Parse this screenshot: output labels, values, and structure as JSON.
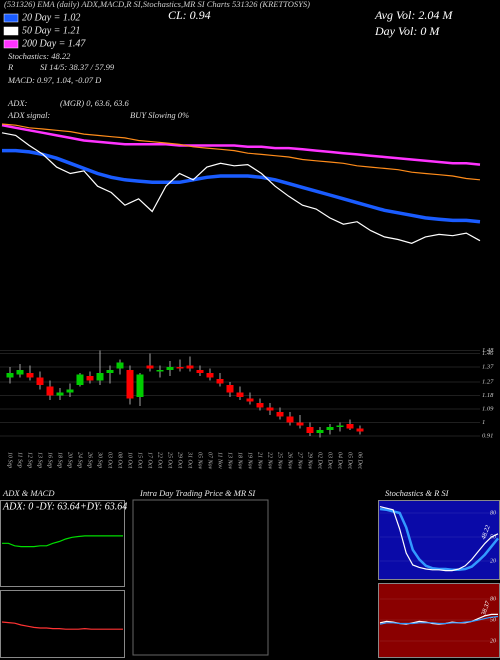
{
  "chart_data": [
    {
      "type": "line",
      "annotations": [
        "(531326) EMA (daily) ADX,MACD,R  SI,Stochastics,MR  SI Charts 531326 (KRETTOSYS)",
        "CL: 0.94",
        "Avg Vol: 2.04  M",
        "Day Vol: 0  M",
        "Stochastics: 48.22",
        "R",
        "SI 14/5: 38.37 / 57.99",
        "MACD: 0.97, 1.04, -0.07 D",
        "ADX:",
        "(MGR) 0, 63.6, 63.6",
        "ADX  signal:",
        "BUY Slowing 0%"
      ],
      "ylim": [
        0.6,
        1.9
      ],
      "series": [
        {
          "name": "20 Day = 1.02",
          "color": "#1a5cff",
          "values": [
            1.58,
            1.58,
            1.57,
            1.55,
            1.52,
            1.48,
            1.44,
            1.4,
            1.37,
            1.35,
            1.34,
            1.33,
            1.33,
            1.33,
            1.35,
            1.37,
            1.38,
            1.38,
            1.38,
            1.37,
            1.35,
            1.32,
            1.29,
            1.26,
            1.23,
            1.2,
            1.17,
            1.14,
            1.11,
            1.09,
            1.07,
            1.05,
            1.04,
            1.03,
            1.03,
            1.02
          ]
        },
        {
          "name": "50 Day = 1.21",
          "color": "#ffffff",
          "values": [
            1.72,
            1.7,
            1.62,
            1.55,
            1.45,
            1.4,
            1.42,
            1.3,
            1.25,
            1.15,
            1.2,
            1.1,
            1.3,
            1.4,
            1.35,
            1.45,
            1.48,
            1.46,
            1.47,
            1.4,
            1.3,
            1.22,
            1.15,
            1.12,
            1.05,
            1.0,
            1.02,
            0.95,
            0.9,
            0.88,
            0.85,
            0.9,
            0.92,
            0.91,
            0.93,
            0.87
          ]
        },
        {
          "name": "200 Day = 1.47",
          "color": "#ff33ff",
          "values": [
            1.78,
            1.76,
            1.74,
            1.72,
            1.7,
            1.68,
            1.66,
            1.65,
            1.64,
            1.63,
            1.63,
            1.63,
            1.63,
            1.62,
            1.62,
            1.62,
            1.62,
            1.62,
            1.61,
            1.61,
            1.6,
            1.6,
            1.59,
            1.58,
            1.57,
            1.56,
            1.55,
            1.54,
            1.53,
            1.52,
            1.51,
            1.5,
            1.49,
            1.48,
            1.48,
            1.47
          ]
        },
        {
          "color": "#ff8c1a",
          "values": [
            1.79,
            1.78,
            1.76,
            1.75,
            1.74,
            1.73,
            1.71,
            1.7,
            1.69,
            1.68,
            1.66,
            1.65,
            1.64,
            1.63,
            1.61,
            1.6,
            1.59,
            1.58,
            1.56,
            1.55,
            1.54,
            1.53,
            1.51,
            1.5,
            1.49,
            1.48,
            1.46,
            1.45,
            1.44,
            1.43,
            1.41,
            1.4,
            1.39,
            1.38,
            1.36,
            1.35
          ]
        }
      ]
    },
    {
      "type": "candlestick",
      "categories": [
        "10 Sep",
        "11 Sep",
        "12 Sep",
        "13 Sep",
        "16 Sep",
        "18 Sep",
        "20 Sep",
        "24 Sep",
        "26 Sep",
        "30 Sep",
        "03 Oct",
        "08 Oct",
        "10 Oct",
        "15 Oct",
        "17 Oct",
        "22 Oct",
        "25 Oct",
        "29 Oct",
        "31 Oct",
        "05 Nov",
        "07 Nov",
        "11 Nov",
        "13 Nov",
        "18 Nov",
        "19 Nov",
        "21 Nov",
        "22 Nov",
        "25 Nov",
        "26 Nov",
        "27 Nov",
        "29 Nov",
        "02 Dec",
        "03 Dec",
        "04 Dec",
        "05 Dec",
        "06 Dec"
      ],
      "open": [
        1.3,
        1.32,
        1.33,
        1.3,
        1.24,
        1.18,
        1.2,
        1.25,
        1.31,
        1.28,
        1.33,
        1.36,
        1.35,
        1.17,
        1.38,
        1.34,
        1.35,
        1.37,
        1.38,
        1.35,
        1.33,
        1.29,
        1.25,
        1.2,
        1.16,
        1.13,
        1.1,
        1.07,
        1.04,
        1.0,
        0.97,
        0.93,
        0.95,
        0.97,
        0.99,
        0.96
      ],
      "high": [
        1.37,
        1.39,
        1.38,
        1.34,
        1.28,
        1.23,
        1.26,
        1.33,
        1.34,
        1.48,
        1.38,
        1.42,
        1.38,
        1.33,
        1.46,
        1.38,
        1.41,
        1.42,
        1.44,
        1.38,
        1.36,
        1.33,
        1.27,
        1.24,
        1.2,
        1.16,
        1.13,
        1.1,
        1.07,
        1.05,
        1.0,
        0.97,
        0.99,
        1.0,
        1.02,
        0.98
      ],
      "low": [
        1.26,
        1.3,
        1.28,
        1.22,
        1.15,
        1.15,
        1.17,
        1.24,
        1.26,
        1.25,
        1.26,
        1.32,
        1.12,
        1.11,
        1.34,
        1.3,
        1.31,
        1.34,
        1.34,
        1.31,
        1.28,
        1.24,
        1.17,
        1.15,
        1.12,
        1.08,
        1.05,
        1.02,
        0.98,
        0.96,
        0.91,
        0.9,
        0.92,
        0.94,
        0.95,
        0.92
      ],
      "close": [
        1.33,
        1.35,
        1.3,
        1.25,
        1.18,
        1.2,
        1.22,
        1.32,
        1.28,
        1.33,
        1.35,
        1.4,
        1.16,
        1.32,
        1.36,
        1.35,
        1.37,
        1.36,
        1.36,
        1.33,
        1.3,
        1.26,
        1.2,
        1.17,
        1.14,
        1.1,
        1.08,
        1.04,
        1.0,
        0.98,
        0.93,
        0.95,
        0.97,
        0.98,
        0.96,
        0.94
      ],
      "up_color": "#00cc00",
      "down_color": "#ff0000",
      "ylim": [
        0.85,
        1.55
      ],
      "yticks": [
        0.91,
        1,
        1.09,
        1.18,
        1.27,
        1.37,
        1.46,
        1.48
      ],
      "grid": true
    },
    {
      "type": "line",
      "title": "ADX  & MACD",
      "annotations": [
        "ADX: 0",
        "-DY: 63.64",
        "+DY: 63.64"
      ],
      "ylim": [
        0,
        100
      ],
      "series": [
        {
          "color": "#00dd00",
          "values": [
            55,
            55,
            52,
            51,
            51,
            51,
            52,
            52,
            55,
            57,
            60,
            62,
            63,
            63.64,
            63.64,
            63.64,
            63.64,
            63.64,
            63.64,
            63.64
          ]
        }
      ]
    },
    {
      "type": "line",
      "ylim": [
        -0.5,
        0.5
      ],
      "series": [
        {
          "color": "#ff3333",
          "values": [
            0.05,
            0.04,
            0.03,
            0.0,
            -0.02,
            -0.04,
            -0.05,
            -0.05,
            -0.06,
            -0.06,
            -0.07,
            -0.07,
            -0.07,
            -0.06,
            -0.07,
            -0.07,
            -0.07,
            -0.07,
            -0.07,
            -0.07
          ]
        }
      ]
    },
    {
      "type": "box",
      "title": "Intra Day Trading Price  & MR       SI"
    },
    {
      "type": "line",
      "title": "Stochastics & R       SI",
      "background": "#0a0aa8",
      "annotations": [
        "48.22"
      ],
      "ylim": [
        0,
        100
      ],
      "yticks": [
        20,
        50,
        80
      ],
      "series": [
        {
          "color": "#3399ff",
          "values": [
            85,
            84,
            82,
            80,
            62,
            34,
            22,
            14,
            11,
            10,
            10,
            9,
            9,
            10,
            13,
            20,
            28,
            38,
            48.22
          ]
        },
        {
          "color": "#ffffff",
          "values": [
            88,
            86,
            84,
            60,
            30,
            15,
            12,
            10,
            9,
            9,
            8,
            8,
            10,
            14,
            22,
            32,
            42,
            50,
            54
          ]
        }
      ]
    },
    {
      "type": "line",
      "background": "#8a0000",
      "annotations": [
        "38.37"
      ],
      "ylim": [
        0,
        100
      ],
      "yticks": [
        20,
        50,
        80
      ],
      "series": [
        {
          "color": "#ffffff",
          "values": [
            46,
            48,
            47,
            45,
            44,
            46,
            48,
            47,
            45,
            44,
            45,
            47,
            46,
            46,
            48,
            52,
            56,
            58,
            57.99
          ]
        },
        {
          "color": "#3399ff",
          "values": [
            44,
            46,
            46,
            45,
            45,
            45,
            46,
            46,
            46,
            45,
            45,
            46,
            46,
            47,
            48,
            50,
            52,
            54,
            55
          ]
        }
      ]
    }
  ]
}
